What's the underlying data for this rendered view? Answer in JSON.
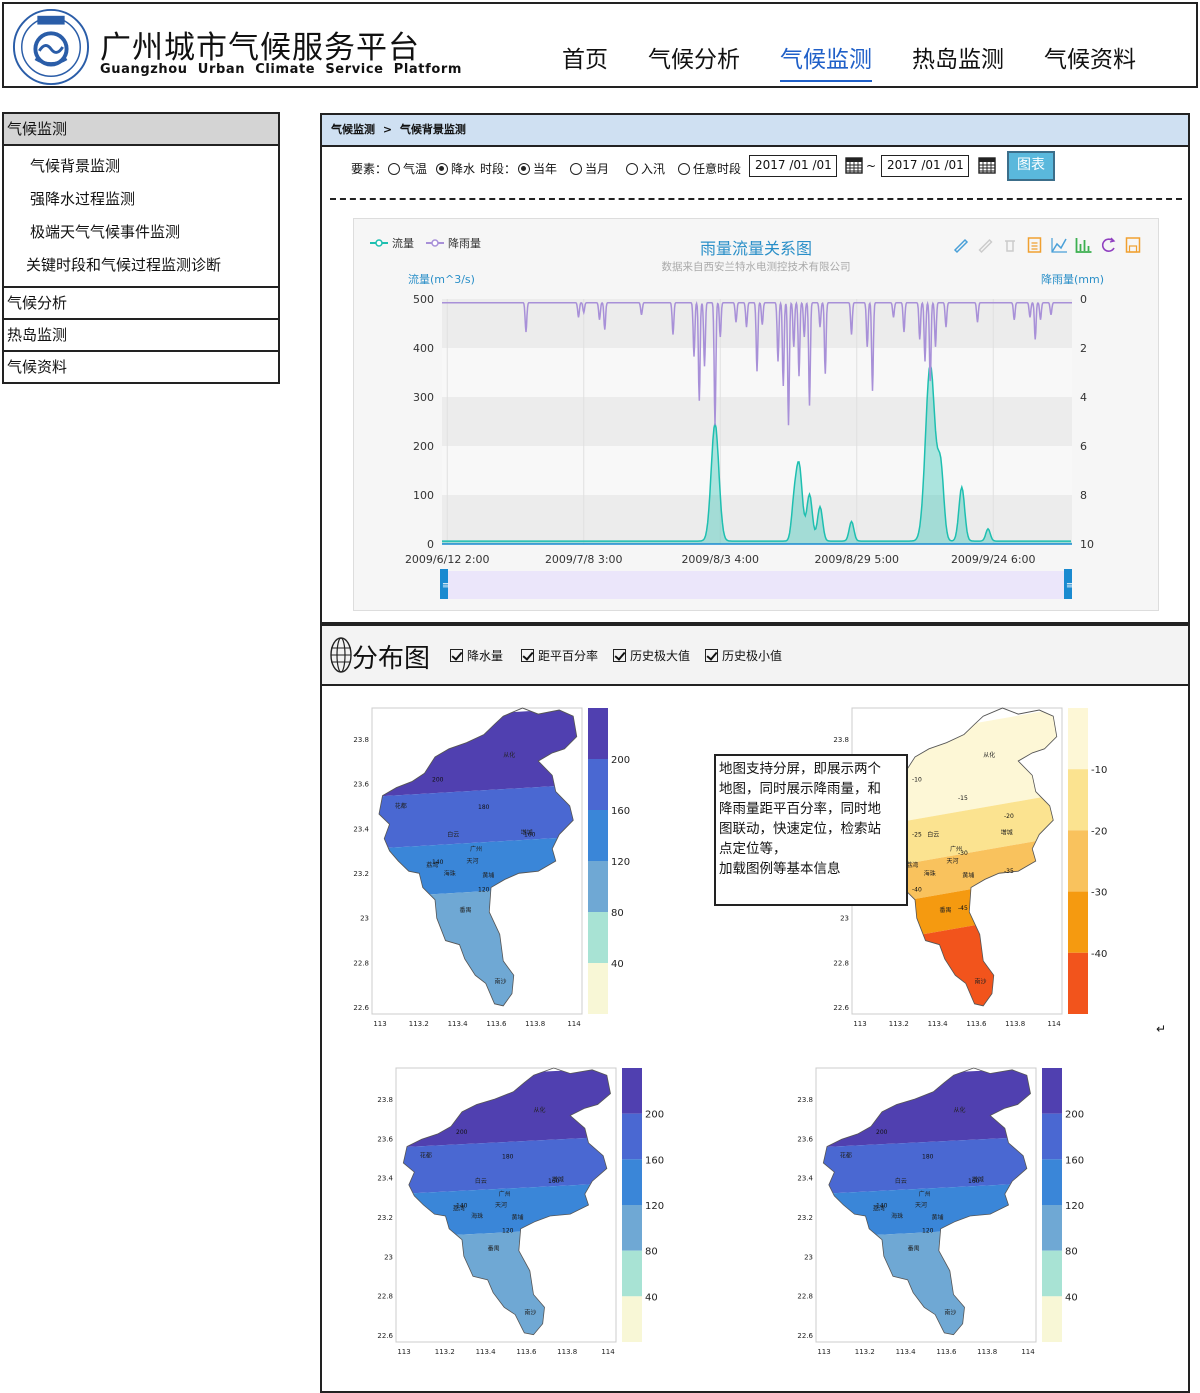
{
  "header": {
    "title": "广州城市气候服务平台",
    "subtitle": "Guangzhou  Urban  Climate  Service  Platform",
    "nav": [
      "首页",
      "气候分析",
      "气候监测",
      "热岛监测",
      "气候资料"
    ],
    "active_nav": "气候监测"
  },
  "sidebar": {
    "groups": [
      {
        "label": "气候监测",
        "active": true,
        "items": [
          "气候背景监测",
          "强降水过程监测",
          "极端天气气候事件监测",
          "关键时段和气候过程监测诊断"
        ]
      },
      {
        "label": "气候分析"
      },
      {
        "label": "热岛监测"
      },
      {
        "label": "气候资料"
      }
    ]
  },
  "breadcrumb": {
    "parent": "气候监测",
    "separator": ">",
    "current": "气候背景监测"
  },
  "filters": {
    "element_label": "要素：",
    "elements": [
      {
        "label": "气温",
        "selected": false
      },
      {
        "label": "降水",
        "selected": true
      }
    ],
    "period_label": "时段：",
    "periods": [
      {
        "label": "当年",
        "selected": true
      },
      {
        "label": "当月",
        "selected": false
      },
      {
        "label": "入汛",
        "selected": false
      },
      {
        "label": "任意时段",
        "selected": false
      }
    ],
    "date_from": "2017 /01 /01",
    "range_sep": "~",
    "date_to": "2017 /01 /01",
    "chart_button": "图表"
  },
  "chart_data": {
    "type": "line",
    "title": "雨量流量关系图",
    "subtitle": "数据来自西安兰特水电测控技术有限公司",
    "legend": [
      "流量",
      "降雨量"
    ],
    "legend_position": "top-left",
    "left_axis_label": "流量(m^3/s)",
    "right_axis_label": "降雨量(mm)",
    "left_ylim": [
      0,
      500
    ],
    "left_ticks": [
      "500",
      "400",
      "300",
      "200",
      "100",
      "0"
    ],
    "right_ylim": [
      0,
      10
    ],
    "right_inverted": true,
    "right_ticks": [
      "0",
      "2",
      "4",
      "6",
      "8",
      "10"
    ],
    "x_ticks": [
      "2009/6/12 2:00",
      "2009/7/8 3:00",
      "2009/8/3 4:00",
      "2009/8/29 5:00",
      "2009/9/24 6:00"
    ],
    "x_domain_days": [
      0,
      120
    ],
    "x_tick_days": [
      1,
      27,
      53,
      79,
      105
    ],
    "flow_series": {
      "name": "流量",
      "color": "#1ebfb0",
      "peaks": [
        [
          52,
          240
        ],
        [
          67,
          60
        ],
        [
          68,
          155
        ],
        [
          70,
          95
        ],
        [
          72,
          70
        ],
        [
          78,
          40
        ],
        [
          93,
          360
        ],
        [
          95,
          140
        ],
        [
          99,
          110
        ],
        [
          104,
          25
        ]
      ]
    },
    "rain_series": {
      "name": "降雨量",
      "color": "#a890d8",
      "spikes": [
        [
          16,
          1.2
        ],
        [
          26,
          0.6
        ],
        [
          27,
          0.4
        ],
        [
          30,
          0.7
        ],
        [
          31,
          1.1
        ],
        [
          38,
          0.5
        ],
        [
          44,
          1.3
        ],
        [
          48,
          2.2
        ],
        [
          49,
          4.0
        ],
        [
          50,
          2.6
        ],
        [
          52,
          5.0
        ],
        [
          53,
          1.4
        ],
        [
          56,
          0.8
        ],
        [
          58,
          1.0
        ],
        [
          60,
          2.8
        ],
        [
          61,
          0.9
        ],
        [
          64,
          2.4
        ],
        [
          65,
          3.4
        ],
        [
          66,
          5.0
        ],
        [
          67,
          1.8
        ],
        [
          68,
          3.0
        ],
        [
          69,
          1.4
        ],
        [
          70,
          4.2
        ],
        [
          72,
          1.0
        ],
        [
          73,
          2.9
        ],
        [
          78,
          1.3
        ],
        [
          81,
          1.8
        ],
        [
          82,
          3.6
        ],
        [
          86,
          0.6
        ],
        [
          88,
          1.2
        ],
        [
          91,
          1.5
        ],
        [
          92,
          2.4
        ],
        [
          93,
          3.2
        ],
        [
          94,
          1.8
        ],
        [
          96,
          1.0
        ],
        [
          102,
          0.8
        ],
        [
          109,
          0.7
        ],
        [
          112,
          0.6
        ],
        [
          113,
          1.5
        ],
        [
          114,
          0.7
        ],
        [
          116,
          0.5
        ]
      ]
    }
  },
  "toolbox_icons": [
    "mark-icon",
    "mark-undo-icon",
    "mark-clear-icon",
    "data-view-icon",
    "line-chart-icon",
    "bar-chart-icon",
    "restore-icon",
    "save-image-icon"
  ],
  "distribution": {
    "title": "分布图",
    "options": [
      {
        "label": "降水量",
        "checked": true
      },
      {
        "label": "距平百分率",
        "checked": true
      },
      {
        "label": "历史极大值",
        "checked": true
      },
      {
        "label": "历史极小值",
        "checked": true
      }
    ],
    "note_lines": [
      "地图支持分屏，即展示两个",
      "地图，同时展示降雨量，和",
      "降雨量距平百分率，同时地",
      "图联动，快速定位，检索站",
      "点定位等，",
      "加载图例等基本信息"
    ],
    "map_x_ticks": [
      "113",
      "113.2",
      "113.4",
      "113.6",
      "113.8",
      "114"
    ],
    "map_y_ticks": [
      "23.8",
      "23.6",
      "23.4",
      "23.2",
      "23",
      "22.8",
      "22.6"
    ],
    "precip_legend": {
      "labels": [
        "200",
        "160",
        "120",
        "80",
        "40"
      ],
      "colors": [
        "#5040b0",
        "#4a68d2",
        "#3a86d8",
        "#6fa8d4",
        "#a8e3d4",
        "#f8f7d6"
      ]
    },
    "anomaly_legend": {
      "labels": [
        "-10",
        "-20",
        "-30",
        "-40"
      ],
      "colors": [
        "#fdf7d6",
        "#fbe390",
        "#f9c25d",
        "#f59a10",
        "#f2541c"
      ]
    },
    "district_labels": [
      "从化",
      "花都",
      "白云",
      "增城",
      "广州",
      "天河",
      "荔湾",
      "海珠",
      "黄埔",
      "番禺",
      "南沙"
    ],
    "precip_contour_labels": [
      "200",
      "180",
      "160",
      "140",
      "120"
    ],
    "anomaly_contour_labels": [
      "-10",
      "-15",
      "-20",
      "-25",
      "-30",
      "-35",
      "-40",
      "-45"
    ]
  }
}
